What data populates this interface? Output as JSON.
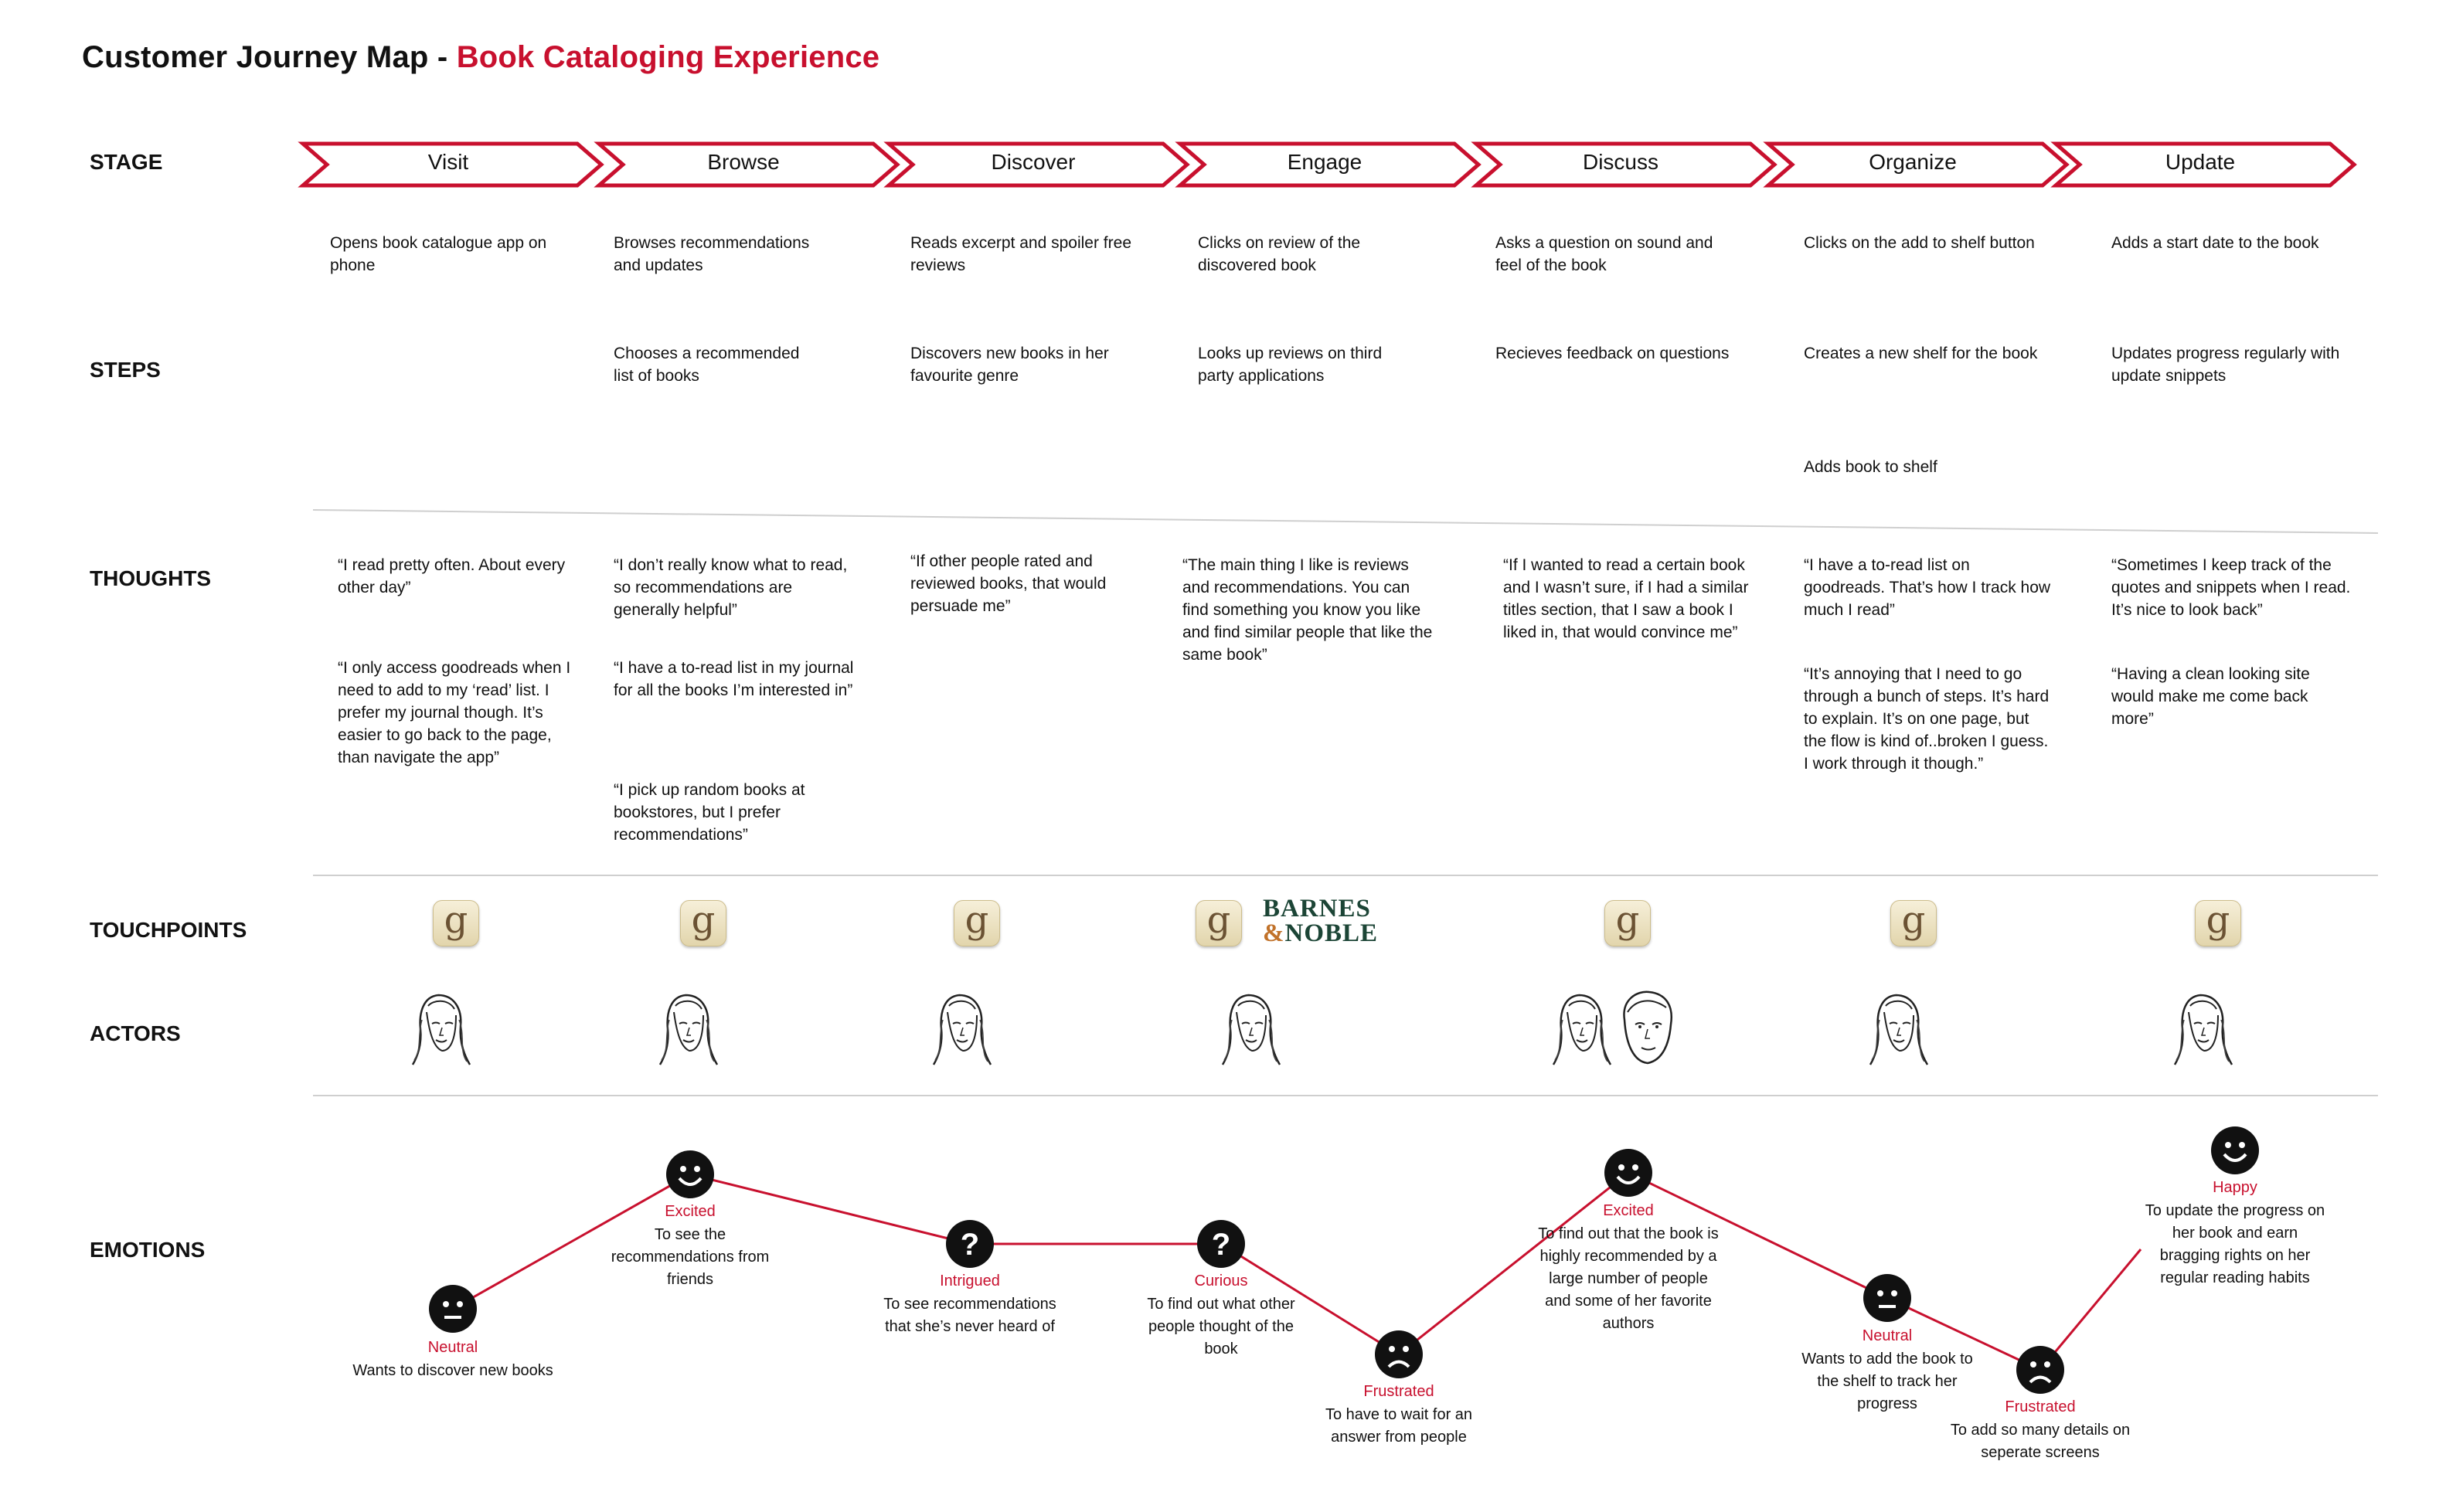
{
  "title": {
    "prefix": "Customer Journey Map - ",
    "highlight": "Book Cataloging Experience"
  },
  "row_labels": {
    "stage": "STAGE",
    "steps": "STEPS",
    "thoughts": "THOUGHTS",
    "touchpoints": "TOUCHPOINTS",
    "actors": "ACTORS",
    "emotions": "EMOTIONS"
  },
  "accent_color": "#c8102e",
  "stages": [
    {
      "label": "Visit",
      "steps": [
        "Opens book catalogue app on phone"
      ],
      "thoughts": [
        "“I read pretty often. About every other day”",
        "“I only access goodreads when I need to add to my ‘read’ list. I prefer my journal though. It’s easier to go back to the page, than navigate the app”"
      ],
      "touchpoints": [
        "goodreads-icon"
      ],
      "actors": [
        "woman-sketch"
      ],
      "emotion": {
        "label": "Neutral",
        "face": "neutral",
        "level": 0.2,
        "desc": "Wants to discover new books"
      }
    },
    {
      "label": "Browse",
      "steps": [
        "Browses recommendations and updates",
        "Chooses a recommended list of books"
      ],
      "thoughts": [
        "“I don’t really know what to read, so recommendations are generally helpful”",
        "“I have a to-read list in my journal for all the books I’m interested in”",
        "“I pick up random books at bookstores, but I prefer recommendations”"
      ],
      "touchpoints": [
        "goodreads-icon"
      ],
      "actors": [
        "woman-sketch"
      ],
      "emotion": {
        "label": "Excited",
        "face": "happy",
        "level": 0.8,
        "desc": "To see the recommendations from friends"
      }
    },
    {
      "label": "Discover",
      "steps": [
        "Reads excerpt and spoiler free reviews",
        "Discovers new books in her favourite genre"
      ],
      "thoughts": [
        "“If other people rated and reviewed books, that would persuade me”"
      ],
      "touchpoints": [
        "goodreads-icon"
      ],
      "actors": [
        "woman-sketch"
      ],
      "emotion": {
        "label": "Intrigued",
        "face": "question",
        "level": 0.5,
        "desc": "To see recommendations that she’s never heard of"
      }
    },
    {
      "label": "Engage",
      "steps": [
        "Clicks on review of the discovered book",
        "Looks up reviews on third party applications"
      ],
      "thoughts": [
        "“The main thing I like is reviews and recommendations. You can find something you know you like and find similar people that like the same book”"
      ],
      "touchpoints": [
        "goodreads-icon",
        "barnes-noble-logo"
      ],
      "brand": {
        "line1": "BARNES",
        "amp": "&",
        "line2": "NOBLE"
      },
      "actors": [
        "woman-sketch"
      ],
      "emotion": {
        "label": "Curious",
        "face": "question",
        "level": 0.5,
        "desc": "To find out what other people thought of the book"
      }
    },
    {
      "label": "Discuss",
      "steps": [
        "Asks a question on sound and feel of the book",
        "Recieves feedback on questions"
      ],
      "thoughts": [
        "“If I wanted to read a certain book and I wasn’t sure, if I had a similar titles section, that  I saw a book I liked in, that would convince me”"
      ],
      "touchpoints": [
        "goodreads-icon"
      ],
      "actors": [
        "woman-sketch",
        "woman-sketch-2"
      ],
      "emotion": {
        "label": "Frustrated",
        "face": "sad",
        "level": 0.0,
        "desc": "To have to wait for an answer from people"
      }
    },
    {
      "label": "Organize",
      "steps": [
        "Clicks on the add to shelf button",
        "Creates a new shelf for the book",
        "Adds book to shelf"
      ],
      "thoughts": [
        "“I have a to-read list on goodreads. That’s how I track how much I read”",
        "“It’s annoying that I need to go through a bunch of steps. It’s hard to explain. It’s on one page, but the flow is kind of..broken I guess. I work through it though.”"
      ],
      "touchpoints": [
        "goodreads-icon"
      ],
      "actors": [
        "woman-sketch"
      ],
      "emotion": {
        "label": "Excited",
        "face": "happy",
        "level": 0.8,
        "desc": "To find out that the book is highly recommended by a large number of people and some of her favorite authors"
      }
    },
    {
      "label": "Update",
      "steps": [
        "Adds a start date to the book",
        "Updates progress regularly with update snippets"
      ],
      "thoughts": [
        "“Sometimes I keep track of the quotes and snippets when I read. It’s nice to look back”",
        "“Having a clean looking site would make me come back more”"
      ],
      "touchpoints": [
        "goodreads-icon"
      ],
      "actors": [
        "woman-sketch"
      ],
      "emotion": {
        "label": "Neutral",
        "face": "neutral",
        "level": 0.3,
        "desc": "Wants to add the book to the shelf to track her progress"
      }
    }
  ],
  "extra_emotions": [
    {
      "label": "Frustrated",
      "face": "sad",
      "level": 0.0,
      "desc": "To add so many details on seperate screens"
    },
    {
      "label": "Happy",
      "face": "happy",
      "level": 0.9,
      "desc": "To update the progress on her book and earn bragging rights on her regular reading habits"
    }
  ],
  "goodreads_letter": "g"
}
